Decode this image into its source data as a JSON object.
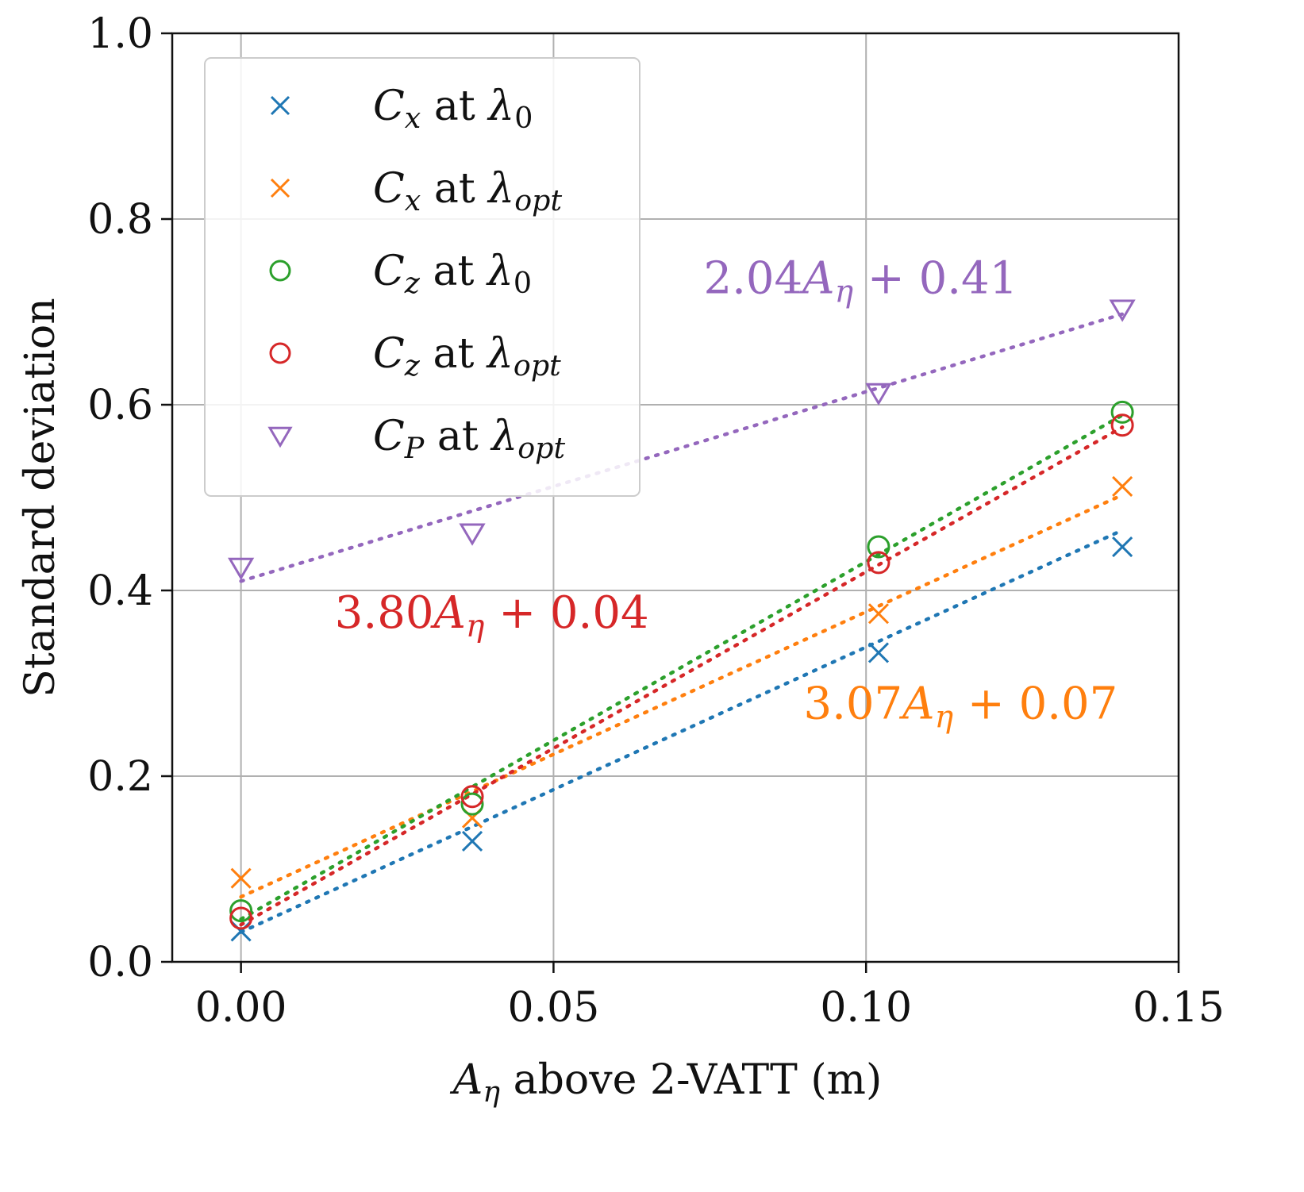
{
  "chart_data": {
    "type": "scatter",
    "xlabel": {
      "var": "A",
      "sub": "η",
      "rest": " above 2-VATT (m)"
    },
    "ylabel": "Standard deviation",
    "xlim": [
      -0.011,
      0.15
    ],
    "ylim": [
      0.0,
      1.0
    ],
    "xticks": [
      0.0,
      0.05,
      0.1,
      0.15
    ],
    "xtick_labels": [
      "0.00",
      "0.05",
      "0.10",
      "0.15"
    ],
    "yticks": [
      0.0,
      0.2,
      0.4,
      0.6,
      0.8,
      1.0
    ],
    "ytick_labels": [
      "0.0",
      "0.2",
      "0.4",
      "0.6",
      "0.8",
      "1.0"
    ],
    "grid": true,
    "legend_position": "top-left",
    "x": [
      0.0,
      0.037,
      0.102,
      0.141
    ],
    "series": [
      {
        "var": "C",
        "sub": "x",
        "at": " at ",
        "lam": "λ",
        "lamsub": "0",
        "marker": "x",
        "color": "#1f77b4",
        "values": [
          0.033,
          0.13,
          0.333,
          0.447
        ],
        "fit": [
          3.07,
          0.032
        ]
      },
      {
        "var": "C",
        "sub": "x",
        "at": " at ",
        "lam": "λ",
        "lamsub": "opt",
        "marker": "x",
        "color": "#ff7f0e",
        "values": [
          0.09,
          0.155,
          0.375,
          0.512
        ],
        "fit": [
          3.07,
          0.07
        ]
      },
      {
        "var": "C",
        "sub": "z",
        "at": " at ",
        "lam": "λ",
        "lamsub": "0",
        "marker": "o",
        "color": "#2ca02c",
        "values": [
          0.055,
          0.17,
          0.447,
          0.592
        ],
        "fit": [
          3.85,
          0.046
        ]
      },
      {
        "var": "C",
        "sub": "z",
        "at": " at ",
        "lam": "λ",
        "lamsub": "opt",
        "marker": "o",
        "color": "#d62728",
        "values": [
          0.047,
          0.178,
          0.43,
          0.578
        ],
        "fit": [
          3.8,
          0.04
        ]
      },
      {
        "var": "C",
        "sub": "P",
        "at": " at ",
        "lam": "λ",
        "lamsub": "opt",
        "marker": "v",
        "color": "#9467bd",
        "values": [
          0.425,
          0.462,
          0.613,
          0.703
        ],
        "fit": [
          2.04,
          0.41
        ]
      }
    ],
    "annotations": [
      {
        "pre": "2.04",
        "var": "A",
        "sub": "η",
        "post": " + 0.41",
        "color": "#9467bd",
        "x": 0.074,
        "y": 0.72
      },
      {
        "pre": "3.80",
        "var": "A",
        "sub": "η",
        "post": " + 0.04",
        "color": "#d62728",
        "x": 0.015,
        "y": 0.36
      },
      {
        "pre": "3.07",
        "var": "A",
        "sub": "η",
        "post": " + 0.07",
        "color": "#ff7f0e",
        "x": 0.09,
        "y": 0.262
      }
    ]
  }
}
